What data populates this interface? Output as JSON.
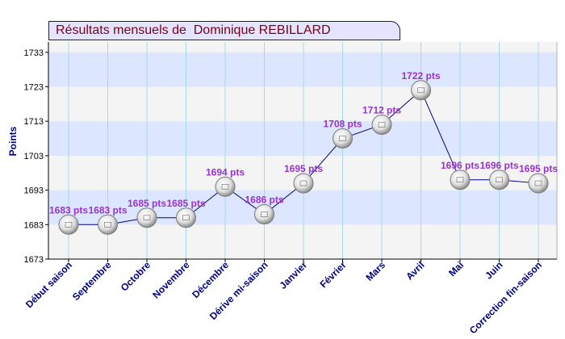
{
  "chart_data": {
    "type": "line",
    "title": "Résultats mensuels de  Dominique REBILLARD",
    "xlabel": "",
    "ylabel": "Points",
    "categories": [
      "Début saison",
      "Septembre",
      "Octobre",
      "Novembre",
      "Décembre",
      "Dérive mi-saison",
      "Janvier",
      "Février",
      "Mars",
      "Avril",
      "Mai",
      "Juin",
      "Correction fin-saison"
    ],
    "series": [
      {
        "values": [
          1683,
          1683,
          1685,
          1685,
          1694,
          1686,
          1695,
          1708,
          1712,
          1722,
          1696,
          1696,
          1695
        ],
        "labels": [
          "1683 pts",
          "1683 pts",
          "1685 pts",
          "1685 pts",
          "1694 pts",
          "1686 pts",
          "1695 pts",
          "1708 pts",
          "1712 pts",
          "1722 pts",
          "1696 pts",
          "1696 pts",
          "1695 pts"
        ]
      }
    ],
    "yticks": [
      1673,
      1683,
      1693,
      1703,
      1713,
      1723,
      1733
    ],
    "ylim": [
      1673,
      1736
    ],
    "grid": true,
    "legend": "none",
    "colors": {
      "line": "#000080",
      "data_label": "#9933cc",
      "axis_label": "#000080",
      "band": "#dce6ff",
      "band_alt": "#f4f4f4",
      "grid": "#a8d8e8",
      "title": "#7a0014",
      "title_bg": "#e4e4ff"
    }
  }
}
